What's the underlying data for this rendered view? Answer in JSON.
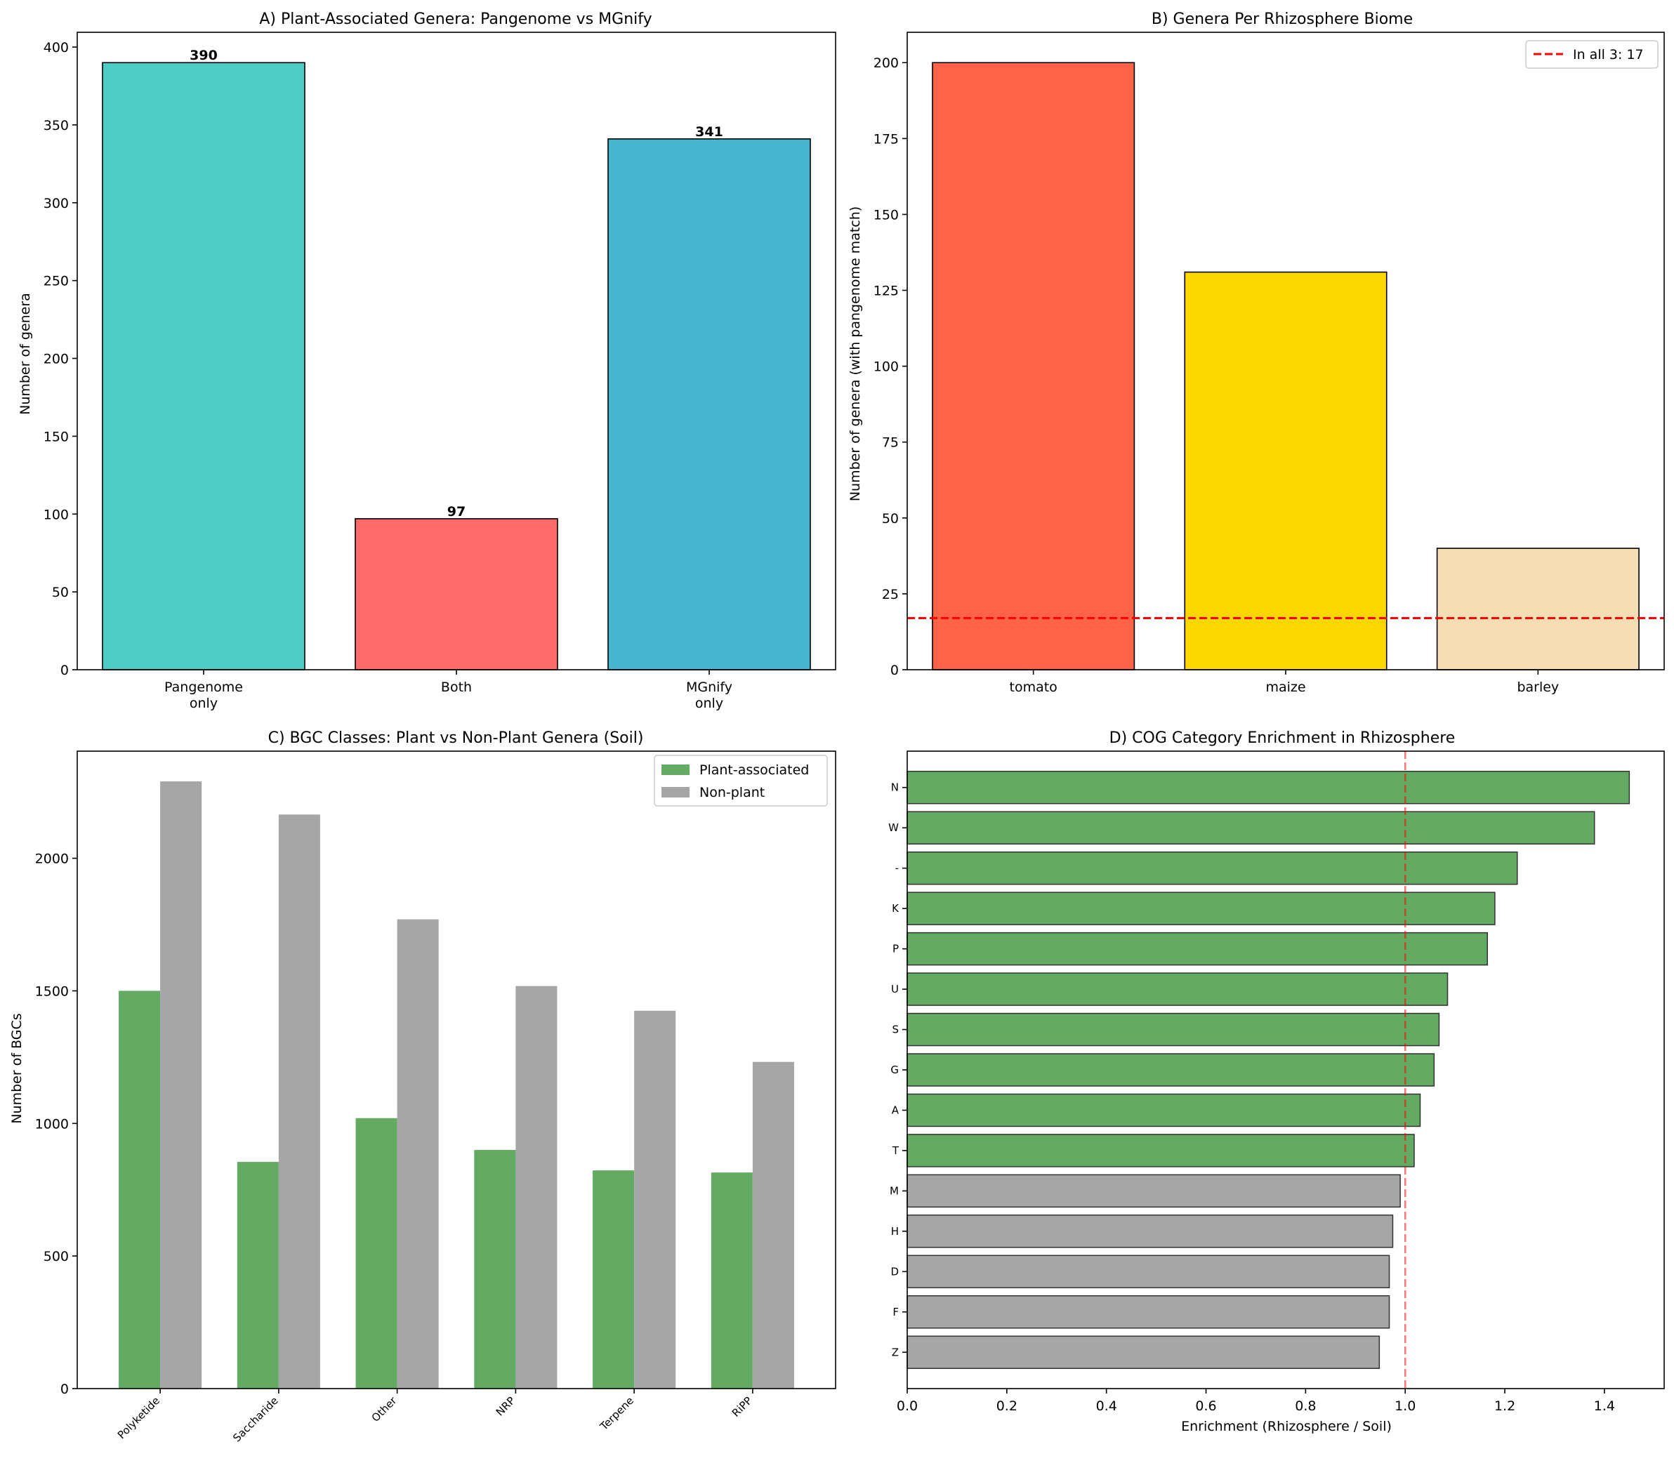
{
  "chart_data": [
    {
      "id": "A",
      "type": "bar",
      "title": "A) Plant-Associated Genera: Pangenome vs MGnify",
      "xlabel": "",
      "ylabel": "Number of genera",
      "categories": [
        [
          "Pangenome",
          "only"
        ],
        [
          "Both"
        ],
        [
          "MGnify",
          "only"
        ]
      ],
      "values": [
        390,
        97,
        341
      ],
      "data_labels": [
        "390",
        "97",
        "341"
      ],
      "colors": [
        "#4ECDC4",
        "#FF6B6B",
        "#45B7D1"
      ],
      "ylim": [
        0,
        409.5
      ],
      "yticks": [
        0,
        50,
        100,
        150,
        200,
        250,
        300,
        350,
        400
      ],
      "grid": false
    },
    {
      "id": "B",
      "type": "bar",
      "title": "B) Genera Per Rhizosphere Biome",
      "xlabel": "",
      "ylabel": "Number of genera (with pangenome match)",
      "categories": [
        "tomato",
        "maize",
        "barley"
      ],
      "values": [
        200,
        131,
        40
      ],
      "colors": [
        "#FF6347",
        "#FFD700",
        "#F5DEB3"
      ],
      "ylim": [
        0,
        210
      ],
      "yticks": [
        0,
        25,
        50,
        75,
        100,
        125,
        150,
        175,
        200
      ],
      "reference_line": {
        "y": 17,
        "label": "In all 3: 17",
        "color": "#FF0000",
        "style": "dashed"
      },
      "legend": "top-right",
      "grid": false
    },
    {
      "id": "C",
      "type": "bar",
      "title": "C) BGC Classes: Plant vs Non-Plant Genera (Soil)",
      "xlabel": "",
      "ylabel": "Number of BGCs",
      "categories": [
        "Polyketide",
        "Saccharide",
        "Other",
        "NRP",
        "Terpene",
        "RiPP"
      ],
      "series": [
        {
          "name": "Plant-associated",
          "color": "#63AB63",
          "values": [
            1500,
            855,
            1020,
            900,
            823,
            815
          ]
        },
        {
          "name": "Non-plant",
          "color": "#A6A6A6",
          "values": [
            2290,
            2165,
            1770,
            1518,
            1425,
            1232
          ]
        }
      ],
      "ylim": [
        0,
        2404
      ],
      "yticks": [
        0,
        500,
        1000,
        1500,
        2000
      ],
      "legend": "top-right",
      "grid": false
    },
    {
      "id": "D",
      "type": "bar",
      "orientation": "horizontal",
      "title": "D) COG Category Enrichment in Rhizosphere",
      "xlabel": "Enrichment (Rhizosphere / Soil)",
      "ylabel": "",
      "categories": [
        "N",
        "W",
        "-",
        "K",
        "P",
        "U",
        "S",
        "G",
        "A",
        "T",
        "M",
        "H",
        "D",
        "F",
        "Z"
      ],
      "values": [
        1.45,
        1.38,
        1.225,
        1.18,
        1.165,
        1.085,
        1.068,
        1.058,
        1.03,
        1.018,
        0.99,
        0.975,
        0.968,
        0.968,
        0.948
      ],
      "colors": {
        "enriched": "#63AB63",
        "depleted": "#A6A6A6"
      },
      "reference_line": {
        "x": 1.0,
        "color": "#FF0000",
        "style": "dashed"
      },
      "xlim": [
        0,
        1.52
      ],
      "xticks": [
        0.0,
        0.2,
        0.4,
        0.6,
        0.8,
        1.0,
        1.2,
        1.4
      ],
      "grid": false
    }
  ]
}
